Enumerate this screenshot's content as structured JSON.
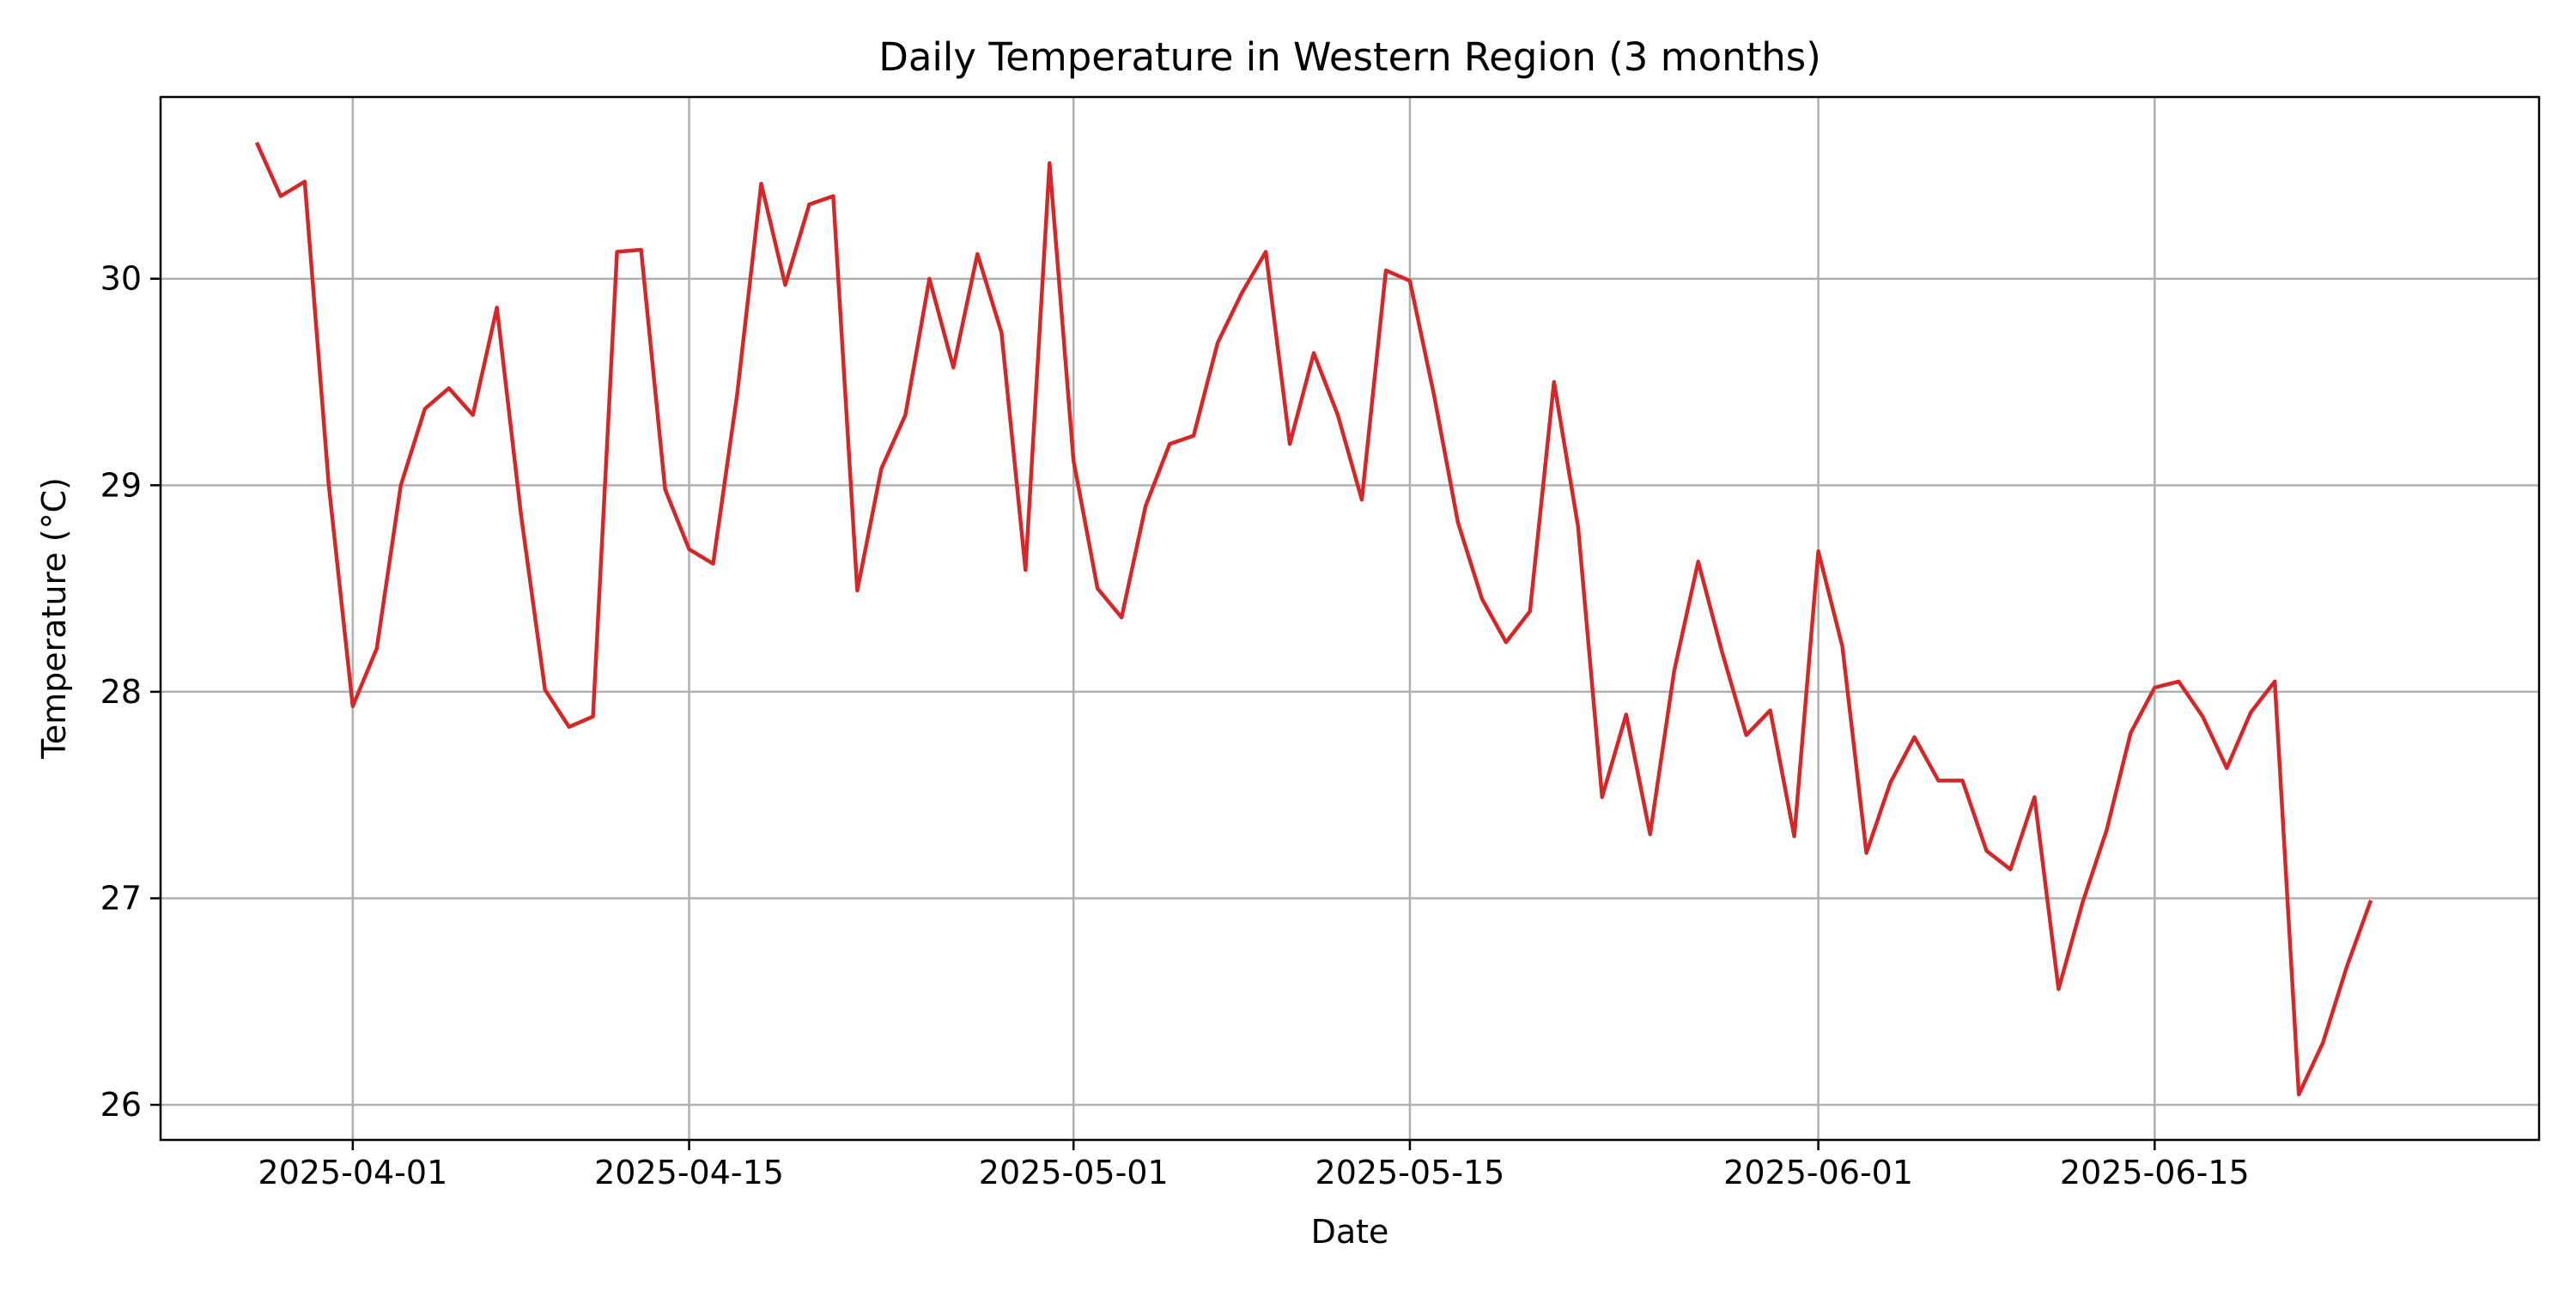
{
  "chart_data": {
    "type": "line",
    "title": "Daily Temperature in Western Region (3 months)",
    "xlabel": "Date",
    "ylabel": "Temperature (°C)",
    "grid": true,
    "xlim": [
      "2025-03-24",
      "2025-07-01"
    ],
    "ylim": [
      25.83,
      30.88
    ],
    "x_ticks": [
      {
        "date": "2025-04-01",
        "label": "2025-04-01"
      },
      {
        "date": "2025-04-15",
        "label": "2025-04-15"
      },
      {
        "date": "2025-05-01",
        "label": "2025-05-01"
      },
      {
        "date": "2025-05-15",
        "label": "2025-05-15"
      },
      {
        "date": "2025-06-01",
        "label": "2025-06-01"
      },
      {
        "date": "2025-06-15",
        "label": "2025-06-15"
      }
    ],
    "y_ticks": [
      {
        "value": 26,
        "label": "26"
      },
      {
        "value": 27,
        "label": "27"
      },
      {
        "value": 28,
        "label": "28"
      },
      {
        "value": 29,
        "label": "29"
      },
      {
        "value": 30,
        "label": "30"
      }
    ],
    "series": [
      {
        "name": "Temperature",
        "color": "#d62728",
        "start_date": "2025-03-28",
        "step_days": 1,
        "values": [
          30.66,
          30.4,
          30.47,
          29.0,
          27.93,
          28.21,
          29.0,
          29.37,
          29.47,
          29.34,
          29.86,
          28.86,
          28.01,
          27.83,
          27.88,
          30.13,
          30.14,
          28.98,
          28.69,
          28.62,
          29.44,
          30.46,
          29.97,
          30.36,
          30.4,
          28.49,
          29.08,
          29.34,
          30.0,
          29.57,
          30.12,
          29.74,
          28.59,
          30.56,
          29.12,
          28.5,
          28.36,
          28.9,
          29.2,
          29.24,
          29.69,
          29.93,
          30.13,
          29.2,
          29.64,
          29.34,
          28.93,
          30.04,
          29.99,
          29.44,
          28.82,
          28.45,
          28.24,
          28.39,
          29.5,
          28.8,
          27.49,
          27.89,
          27.31,
          28.1,
          28.63,
          28.19,
          27.79,
          27.91,
          27.3,
          28.68,
          28.22,
          27.22,
          27.56,
          27.78,
          27.57,
          27.57,
          27.23,
          27.14,
          27.49,
          26.56,
          26.98,
          27.33,
          27.8,
          28.02,
          28.05,
          27.88,
          27.63,
          27.9,
          28.05,
          26.05,
          26.3,
          26.67,
          26.99
        ]
      }
    ]
  }
}
